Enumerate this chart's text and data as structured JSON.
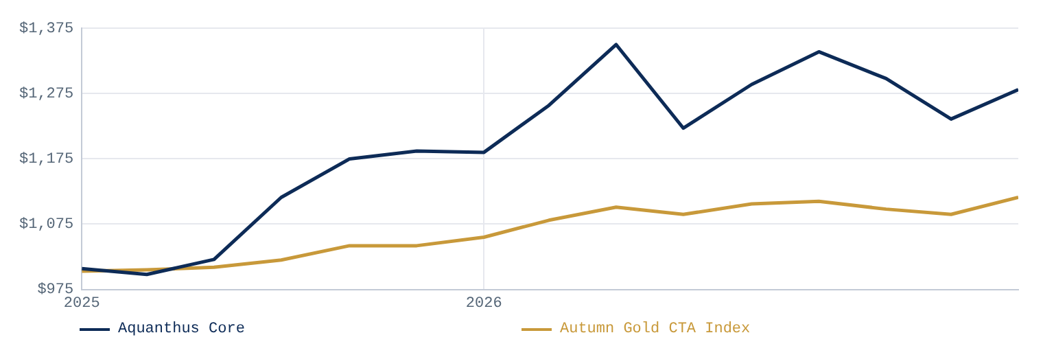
{
  "chart_data": {
    "type": "line",
    "x": [
      "2025-01-01",
      "2025-03-01",
      "2025-05-01",
      "2025-07-01",
      "2025-09-01",
      "2025-11-01",
      "2026-01-01",
      "2026-03-01",
      "2026-05-01",
      "2026-07-01",
      "2026-09-01",
      "2026-11-01",
      "2027-01-01",
      "2027-03-01",
      "2027-05-01"
    ],
    "series": [
      {
        "name": "Aquanthus Core",
        "color": "#0d2b57",
        "values": [
          1007,
          998,
          1021,
          1116,
          1175,
          1187,
          1185,
          1257,
          1350,
          1222,
          1289,
          1339,
          1298,
          1236,
          1281
        ]
      },
      {
        "name": "Autumn Gold CTA Index",
        "color": "#c8993a",
        "values": [
          1003,
          1005,
          1009,
          1020,
          1042,
          1042,
          1055,
          1081,
          1101,
          1090,
          1106,
          1110,
          1098,
          1090,
          1116
        ]
      }
    ],
    "xlim": [
      "2025-01-01",
      "2027-05-01"
    ],
    "xticks": [
      {
        "value": "2025-01-01",
        "label": "2025"
      },
      {
        "value": "2026-01-01",
        "label": "2026"
      }
    ],
    "ylim": [
      975,
      1375
    ],
    "yticks": [
      {
        "value": 975,
        "label": "$975"
      },
      {
        "value": 1075,
        "label": "$1,075"
      },
      {
        "value": 1175,
        "label": "$1,175"
      },
      {
        "value": 1275,
        "label": "$1,275"
      },
      {
        "value": 1375,
        "label": "$1,375"
      }
    ],
    "grid": true,
    "legend": "bottom",
    "marker": "none",
    "line_style": "solid"
  }
}
